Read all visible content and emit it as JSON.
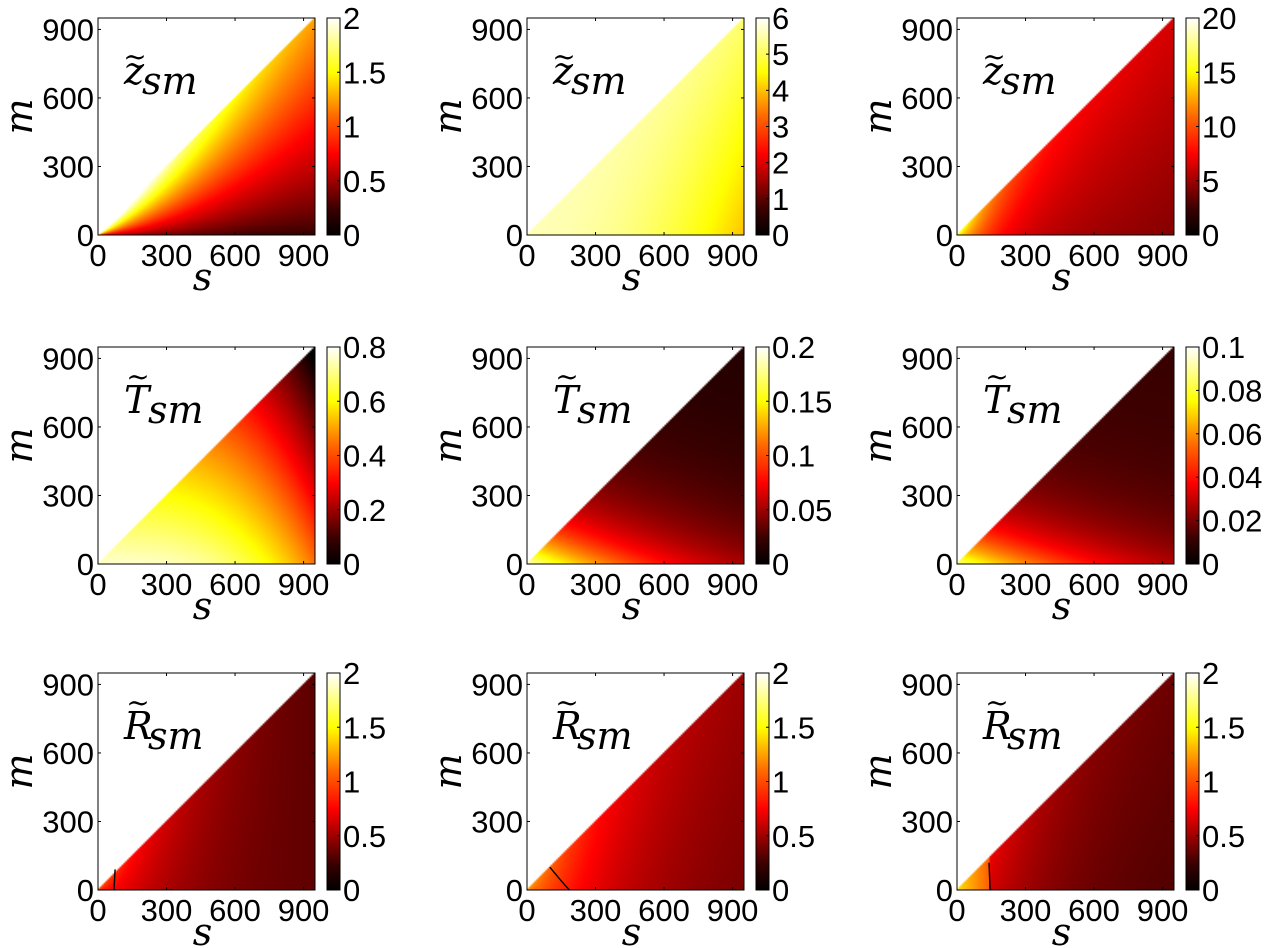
{
  "chart_data": [
    {
      "type": "heatmap",
      "title_base": "z",
      "title_sub": "sm",
      "title_accent": "~",
      "xlabel": "s",
      "ylabel": "m",
      "xticks": [
        "0",
        "300",
        "600",
        "900"
      ],
      "yticks": [
        "0",
        "300",
        "600",
        "900"
      ],
      "xlim": [
        0,
        950
      ],
      "ylim": [
        0,
        950
      ],
      "region": "m <= s",
      "colorbar": {
        "ticks": [
          "0",
          "0.5",
          "1",
          "1.5",
          "2"
        ],
        "max": 2
      },
      "pattern": "zA"
    },
    {
      "type": "heatmap",
      "title_base": "z",
      "title_sub": "sm",
      "title_accent": "~",
      "xlabel": "s",
      "ylabel": "m",
      "xticks": [
        "0",
        "300",
        "600",
        "900"
      ],
      "yticks": [
        "0",
        "300",
        "600",
        "900"
      ],
      "xlim": [
        0,
        950
      ],
      "ylim": [
        0,
        950
      ],
      "region": "m <= s",
      "colorbar": {
        "ticks": [
          "0",
          "1",
          "2",
          "3",
          "4",
          "5",
          "6"
        ],
        "max": 6
      },
      "pattern": "zB"
    },
    {
      "type": "heatmap",
      "title_base": "z",
      "title_sub": "sm",
      "title_accent": "~",
      "xlabel": "s",
      "ylabel": "m",
      "xticks": [
        "0",
        "300",
        "600",
        "900"
      ],
      "yticks": [
        "0",
        "300",
        "600",
        "900"
      ],
      "xlim": [
        0,
        950
      ],
      "ylim": [
        0,
        950
      ],
      "region": "m <= s",
      "colorbar": {
        "ticks": [
          "0",
          "5",
          "10",
          "15",
          "20"
        ],
        "max": 20
      },
      "pattern": "zC"
    },
    {
      "type": "heatmap",
      "title_base": "T",
      "title_sub": "sm",
      "title_accent": "~",
      "xlabel": "s",
      "ylabel": "m",
      "xticks": [
        "0",
        "300",
        "600",
        "900"
      ],
      "yticks": [
        "0",
        "300",
        "600",
        "900"
      ],
      "xlim": [
        0,
        950
      ],
      "ylim": [
        0,
        950
      ],
      "region": "m <= s",
      "colorbar": {
        "ticks": [
          "0",
          "0.2",
          "0.4",
          "0.6",
          "0.8"
        ],
        "max": 0.8
      },
      "pattern": "tA"
    },
    {
      "type": "heatmap",
      "title_base": "T",
      "title_sub": "sm",
      "title_accent": "~",
      "xlabel": "s",
      "ylabel": "m",
      "xticks": [
        "0",
        "300",
        "600",
        "900"
      ],
      "yticks": [
        "0",
        "300",
        "600",
        "900"
      ],
      "xlim": [
        0,
        950
      ],
      "ylim": [
        0,
        950
      ],
      "region": "m <= s",
      "colorbar": {
        "ticks": [
          "0",
          "0.05",
          "0.1",
          "0.15",
          "0.2"
        ],
        "max": 0.2
      },
      "pattern": "tB"
    },
    {
      "type": "heatmap",
      "title_base": "T",
      "title_sub": "sm",
      "title_accent": "~",
      "xlabel": "s",
      "ylabel": "m",
      "xticks": [
        "0",
        "300",
        "600",
        "900"
      ],
      "yticks": [
        "0",
        "300",
        "600",
        "900"
      ],
      "xlim": [
        0,
        950
      ],
      "ylim": [
        0,
        950
      ],
      "region": "m <= s",
      "colorbar": {
        "ticks": [
          "0",
          "0.02",
          "0.04",
          "0.06",
          "0.08",
          "0.1"
        ],
        "max": 0.1
      },
      "pattern": "tC"
    },
    {
      "type": "heatmap",
      "title_base": "R",
      "title_sub": "sm",
      "title_accent": "~",
      "xlabel": "s",
      "ylabel": "m",
      "xticks": [
        "0",
        "300",
        "600",
        "900"
      ],
      "yticks": [
        "0",
        "300",
        "600",
        "900"
      ],
      "xlim": [
        0,
        950
      ],
      "ylim": [
        0,
        950
      ],
      "region": "m <= s",
      "colorbar": {
        "ticks": [
          "0",
          "0.5",
          "1",
          "1.5",
          "2"
        ],
        "max": 2
      },
      "pattern": "rA",
      "contour": [
        [
          70,
          0
        ],
        [
          75,
          90
        ]
      ]
    },
    {
      "type": "heatmap",
      "title_base": "R",
      "title_sub": "sm",
      "title_accent": "~",
      "xlabel": "s",
      "ylabel": "m",
      "xticks": [
        "0",
        "300",
        "600",
        "900"
      ],
      "yticks": [
        "0",
        "300",
        "600",
        "900"
      ],
      "xlim": [
        0,
        950
      ],
      "ylim": [
        0,
        950
      ],
      "region": "m <= s",
      "colorbar": {
        "ticks": [
          "0",
          "0.5",
          "1",
          "1.5",
          "2"
        ],
        "max": 2
      },
      "pattern": "rB",
      "contour": [
        [
          185,
          0
        ],
        [
          150,
          40
        ],
        [
          100,
          100
        ]
      ]
    },
    {
      "type": "heatmap",
      "title_base": "R",
      "title_sub": "sm",
      "title_accent": "~",
      "xlabel": "s",
      "ylabel": "m",
      "xticks": [
        "0",
        "300",
        "600",
        "900"
      ],
      "yticks": [
        "0",
        "300",
        "600",
        "900"
      ],
      "xlim": [
        0,
        950
      ],
      "ylim": [
        0,
        950
      ],
      "region": "m <= s",
      "colorbar": {
        "ticks": [
          "0",
          "0.5",
          "1",
          "1.5",
          "2"
        ],
        "max": 2
      },
      "pattern": "rC",
      "contour": [
        [
          145,
          0
        ],
        [
          140,
          120
        ]
      ]
    }
  ]
}
